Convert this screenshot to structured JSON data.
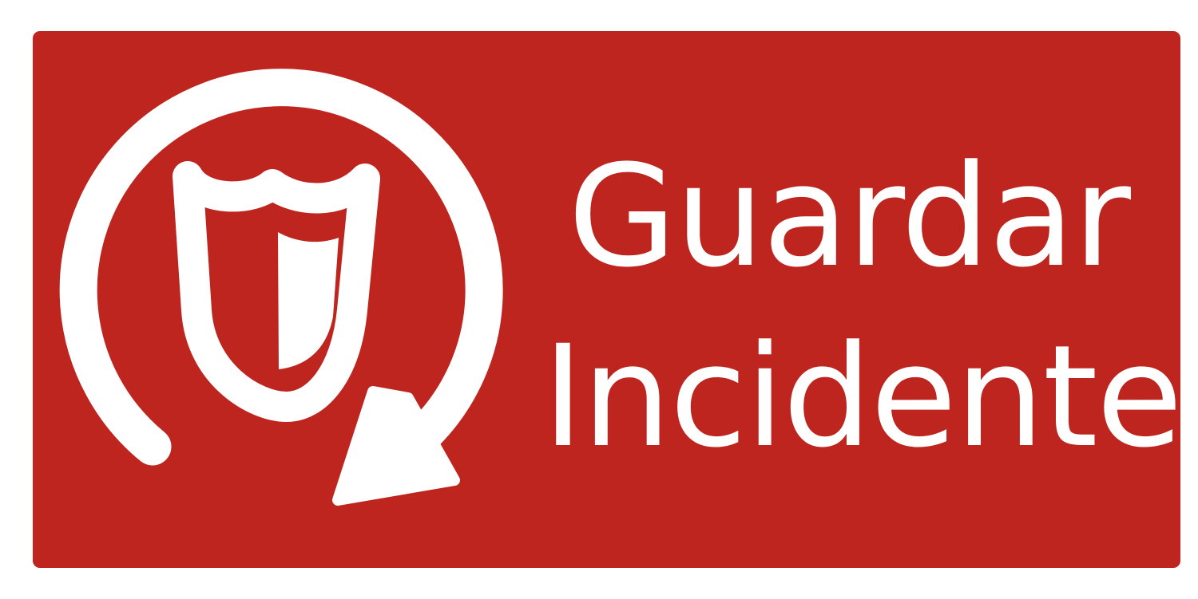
{
  "button": {
    "label_line1": "Guardar",
    "label_line2": "Incidente",
    "icon": "save-incident-shield-rotate-icon",
    "background_color": "#BE251E",
    "foreground_color": "#FFFFFF"
  }
}
